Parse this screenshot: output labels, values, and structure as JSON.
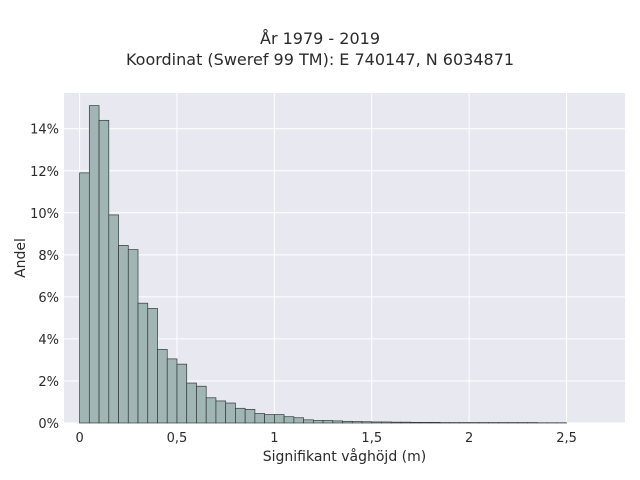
{
  "chart_data": {
    "type": "bar",
    "title_lines": [
      "År 1979 - 2019",
      "Koordinat (Sweref 99 TM): E 740147, N 6034871"
    ],
    "xlabel": "Signifikant våghöjd (m)",
    "ylabel": "Andel",
    "x_ticks": [
      {
        "value": 0,
        "label": "0"
      },
      {
        "value": 0.5,
        "label": "0,5"
      },
      {
        "value": 1,
        "label": "1"
      },
      {
        "value": 1.5,
        "label": "1,5"
      },
      {
        "value": 2,
        "label": "2"
      },
      {
        "value": 2.5,
        "label": "2,5"
      }
    ],
    "y_ticks": [
      {
        "value": 0,
        "label": "0%"
      },
      {
        "value": 2,
        "label": "2%"
      },
      {
        "value": 4,
        "label": "4%"
      },
      {
        "value": 6,
        "label": "6%"
      },
      {
        "value": 8,
        "label": "8%"
      },
      {
        "value": 10,
        "label": "10%"
      },
      {
        "value": 12,
        "label": "12%"
      },
      {
        "value": 14,
        "label": "14%"
      }
    ],
    "xlim": [
      -0.08,
      2.8
    ],
    "ylim": [
      0,
      15.7
    ],
    "bin_width": 0.05,
    "bin_start": 0,
    "values": [
      11.9,
      15.1,
      14.4,
      9.9,
      8.45,
      8.25,
      5.7,
      5.45,
      3.5,
      3.05,
      2.8,
      1.9,
      1.75,
      1.2,
      1.05,
      0.95,
      0.7,
      0.65,
      0.45,
      0.4,
      0.4,
      0.3,
      0.25,
      0.15,
      0.12,
      0.12,
      0.1,
      0.08,
      0.07,
      0.06,
      0.05,
      0.05,
      0.04,
      0.04,
      0.03,
      0.03,
      0.03,
      0.02,
      0.02,
      0.02,
      0.02,
      0.02,
      0.02,
      0.02,
      0.02,
      0.02,
      0.02,
      0.01,
      0.01,
      0.01
    ],
    "grid": true,
    "colors": {
      "bar_fill": "#a0b5b4",
      "bar_edge": "#2f3a3a",
      "plot_bg": "#e8e8f0",
      "grid": "#ffffff"
    }
  }
}
